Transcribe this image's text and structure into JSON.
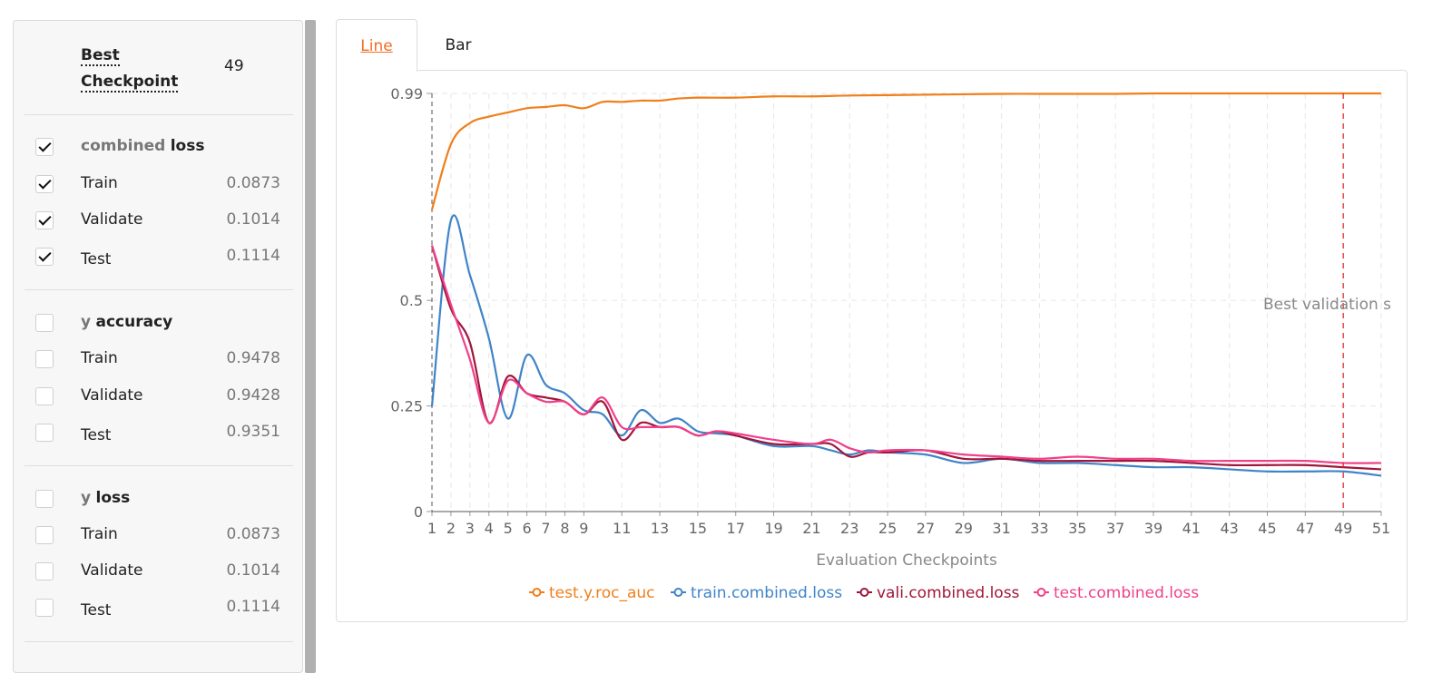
{
  "sidebar": {
    "best_label": "Best Checkpoint",
    "best_value": "49",
    "groups": [
      {
        "name_prefix": "combined",
        "name_suffix": "loss",
        "checked": true,
        "rows": [
          {
            "label": "Train",
            "value": "0.0873",
            "checked": true
          },
          {
            "label": "Validate",
            "value": "0.1014",
            "checked": true
          },
          {
            "label": "Test",
            "value": "0.1114",
            "checked": true
          }
        ]
      },
      {
        "name_prefix": "y",
        "name_suffix": "accuracy",
        "checked": false,
        "rows": [
          {
            "label": "Train",
            "value": "0.9478",
            "checked": false
          },
          {
            "label": "Validate",
            "value": "0.9428",
            "checked": false
          },
          {
            "label": "Test",
            "value": "0.9351",
            "checked": false
          }
        ]
      },
      {
        "name_prefix": "y",
        "name_suffix": "loss",
        "checked": false,
        "rows": [
          {
            "label": "Train",
            "value": "0.0873",
            "checked": false
          },
          {
            "label": "Validate",
            "value": "0.1014",
            "checked": false
          },
          {
            "label": "Test",
            "value": "0.1114",
            "checked": false
          }
        ]
      }
    ]
  },
  "tabs": [
    {
      "label": "Line",
      "active": true
    },
    {
      "label": "Bar",
      "active": false
    }
  ],
  "chart_data": {
    "type": "line",
    "xlabel": "Evaluation Checkpoints",
    "ylabel": "",
    "xlim": [
      1,
      51
    ],
    "ylim": [
      0,
      0.99
    ],
    "x_ticks": [
      1,
      2,
      3,
      4,
      5,
      6,
      7,
      8,
      9,
      11,
      13,
      15,
      17,
      19,
      21,
      23,
      25,
      27,
      29,
      31,
      33,
      35,
      37,
      39,
      41,
      43,
      45,
      47,
      49,
      51
    ],
    "y_ticks": [
      0,
      0.25,
      0.5,
      0.99
    ],
    "grid": true,
    "legend_position": "bottom",
    "best_checkpoint_marker": {
      "x": 49,
      "label": "Best validation s"
    },
    "series": [
      {
        "name": "test.y.roc_auc",
        "color": "#f07f1b",
        "x": [
          1,
          2,
          3,
          4,
          5,
          6,
          7,
          8,
          9,
          10,
          11,
          12,
          13,
          14,
          15,
          17,
          19,
          21,
          23,
          25,
          27,
          29,
          31,
          33,
          35,
          37,
          39,
          41,
          43,
          45,
          47,
          49,
          51
        ],
        "values": [
          0.715,
          0.87,
          0.92,
          0.935,
          0.945,
          0.955,
          0.958,
          0.962,
          0.955,
          0.97,
          0.97,
          0.973,
          0.973,
          0.978,
          0.98,
          0.98,
          0.983,
          0.983,
          0.985,
          0.986,
          0.987,
          0.988,
          0.989,
          0.989,
          0.989,
          0.989,
          0.99,
          0.99,
          0.99,
          0.99,
          0.99,
          0.99,
          0.99
        ]
      },
      {
        "name": "train.combined.loss",
        "color": "#3f84c8",
        "x": [
          1,
          2,
          3,
          4,
          5,
          6,
          7,
          8,
          9,
          10,
          11,
          12,
          13,
          14,
          15,
          16,
          17,
          19,
          21,
          22,
          23,
          24,
          25,
          27,
          29,
          31,
          33,
          35,
          37,
          39,
          41,
          43,
          45,
          47,
          49,
          51
        ],
        "values": [
          0.25,
          0.69,
          0.56,
          0.41,
          0.22,
          0.37,
          0.3,
          0.28,
          0.24,
          0.23,
          0.18,
          0.24,
          0.21,
          0.22,
          0.19,
          0.185,
          0.18,
          0.155,
          0.155,
          0.145,
          0.135,
          0.145,
          0.14,
          0.135,
          0.115,
          0.125,
          0.115,
          0.115,
          0.11,
          0.105,
          0.105,
          0.1,
          0.095,
          0.095,
          0.095,
          0.085
        ]
      },
      {
        "name": "vali.combined.loss",
        "color": "#a0163a",
        "x": [
          1,
          2,
          3,
          4,
          5,
          6,
          7,
          8,
          9,
          10,
          11,
          12,
          13,
          14,
          15,
          16,
          17,
          19,
          21,
          22,
          23,
          24,
          25,
          27,
          29,
          31,
          33,
          35,
          37,
          39,
          41,
          43,
          45,
          47,
          49,
          51
        ],
        "values": [
          0.63,
          0.48,
          0.4,
          0.21,
          0.32,
          0.28,
          0.27,
          0.26,
          0.23,
          0.26,
          0.17,
          0.21,
          0.2,
          0.2,
          0.18,
          0.19,
          0.18,
          0.16,
          0.16,
          0.16,
          0.13,
          0.14,
          0.14,
          0.145,
          0.125,
          0.125,
          0.12,
          0.12,
          0.12,
          0.12,
          0.115,
          0.11,
          0.11,
          0.11,
          0.105,
          0.1
        ]
      },
      {
        "name": "test.combined.loss",
        "color": "#f0408a",
        "x": [
          1,
          2,
          3,
          4,
          5,
          6,
          7,
          8,
          9,
          10,
          11,
          12,
          13,
          14,
          15,
          16,
          17,
          19,
          21,
          22,
          23,
          24,
          25,
          27,
          29,
          31,
          33,
          35,
          37,
          39,
          41,
          43,
          45,
          47,
          49,
          51
        ],
        "values": [
          0.63,
          0.49,
          0.36,
          0.21,
          0.31,
          0.28,
          0.26,
          0.26,
          0.23,
          0.27,
          0.2,
          0.2,
          0.2,
          0.2,
          0.18,
          0.19,
          0.185,
          0.17,
          0.16,
          0.17,
          0.15,
          0.14,
          0.145,
          0.145,
          0.135,
          0.13,
          0.125,
          0.13,
          0.125,
          0.125,
          0.12,
          0.12,
          0.12,
          0.12,
          0.115,
          0.115
        ]
      }
    ]
  }
}
